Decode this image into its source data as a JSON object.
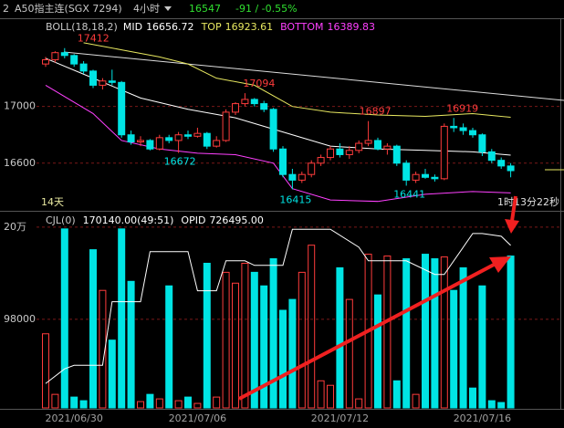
{
  "header": {
    "id": "2",
    "symbol": "A50指主连(SGX 7294)",
    "period": "4小时",
    "last": 16547,
    "change": "-91 / -0.55%"
  },
  "chart_data": {
    "type": "candlestick",
    "indicator": "BOLL(18,18,2)",
    "categories": [
      null,
      null,
      null,
      "2021/06/30",
      null,
      null,
      null,
      null,
      null,
      null,
      null,
      null,
      null,
      null,
      null,
      null,
      "2021/07/06",
      null,
      null,
      null,
      null,
      null,
      null,
      null,
      null,
      null,
      null,
      null,
      null,
      null,
      null,
      "2021/07/12",
      null,
      null,
      null,
      null,
      null,
      null,
      null,
      null,
      null,
      null,
      null,
      null,
      null,
      null,
      "2021/07/16",
      null,
      null,
      null
    ],
    "open": [
      17300,
      17330,
      17380,
      17360,
      17300,
      17250,
      17150,
      17180,
      17170,
      16800,
      16750,
      16760,
      16700,
      16780,
      16760,
      16800,
      16790,
      16810,
      16720,
      16760,
      16960,
      17020,
      17050,
      17020,
      16980,
      16700,
      16520,
      16480,
      16520,
      16600,
      16640,
      16700,
      16660,
      16690,
      16740,
      16760,
      16700,
      16720,
      16600,
      16480,
      16520,
      16500,
      16490,
      16860,
      16850,
      16830,
      16800,
      16680,
      16620,
      16580
    ],
    "high": [
      17350,
      17390,
      17412,
      17370,
      17320,
      17260,
      17200,
      17260,
      17180,
      16830,
      16790,
      16770,
      16800,
      16800,
      16820,
      16830,
      16850,
      16820,
      16790,
      16980,
      17030,
      17094,
      17060,
      17040,
      16990,
      16720,
      16560,
      16540,
      16620,
      16660,
      16720,
      16740,
      16720,
      16760,
      16897,
      16780,
      16740,
      16730,
      16620,
      16540,
      16560,
      16520,
      16880,
      16919,
      16880,
      16850,
      16810,
      16700,
      16640,
      16600
    ],
    "low": [
      17280,
      17310,
      17340,
      17280,
      17230,
      17130,
      17120,
      17150,
      16780,
      16730,
      16720,
      16690,
      16690,
      16740,
      16672,
      16770,
      16780,
      16700,
      16710,
      16750,
      16940,
      17000,
      17000,
      16960,
      16680,
      16500,
      16415,
      16460,
      16500,
      16580,
      16620,
      16640,
      16630,
      16670,
      16720,
      16690,
      16660,
      16580,
      16441,
      16460,
      16490,
      16470,
      16480,
      16820,
      16800,
      16780,
      16650,
      16600,
      16560,
      16500
    ],
    "close": [
      17330,
      17380,
      17360,
      17300,
      17250,
      17150,
      17180,
      17170,
      16800,
      16750,
      16760,
      16700,
      16780,
      16760,
      16800,
      16790,
      16810,
      16720,
      16760,
      16960,
      17020,
      17050,
      17020,
      16980,
      16700,
      16520,
      16480,
      16520,
      16600,
      16640,
      16700,
      16660,
      16690,
      16740,
      16760,
      16700,
      16720,
      16600,
      16480,
      16520,
      16500,
      16490,
      16860,
      16850,
      16830,
      16800,
      16680,
      16620,
      16580,
      16547
    ],
    "up_color": "#ff3c3c",
    "down_color": "#00e4e4",
    "ylim": [
      16270,
      17610
    ],
    "yticks": [
      17000,
      16600
    ],
    "grid": true,
    "overlays": [
      {
        "name": "MID",
        "color": "#ffffff",
        "x": [
          0,
          5,
          10,
          15,
          20,
          25,
          30,
          35,
          40,
          45,
          49
        ],
        "values": [
          17340,
          17200,
          17060,
          16980,
          16920,
          16820,
          16720,
          16700,
          16690,
          16680,
          16656.72
        ]
      },
      {
        "name": "TOP",
        "color": "#e8e860",
        "x": [
          4,
          8,
          12,
          15,
          18,
          22,
          26,
          30,
          35,
          40,
          45,
          49
        ],
        "values": [
          17450,
          17400,
          17350,
          17300,
          17200,
          17150,
          17000,
          16960,
          16940,
          16930,
          16950,
          16923.61
        ]
      },
      {
        "name": "BOTTOM",
        "color": "#ff40ff",
        "x": [
          0,
          5,
          8,
          12,
          16,
          20,
          24,
          26,
          30,
          35,
          40,
          45,
          49
        ],
        "values": [
          17150,
          16950,
          16760,
          16700,
          16670,
          16660,
          16600,
          16420,
          16340,
          16330,
          16380,
          16400,
          16389.83
        ]
      }
    ],
    "countdown_left": "14天",
    "countdown_right": "1时13分22秒",
    "volume": {
      "name": "CJL(0)",
      "readout": "170140.00(49:51)",
      "values": [
        82000,
        15000,
        198000,
        12000,
        8000,
        175000,
        130000,
        75000,
        198000,
        140000,
        7000,
        15000,
        10000,
        135000,
        8000,
        12000,
        5000,
        160000,
        12000,
        150000,
        138000,
        160000,
        150000,
        135000,
        165000,
        108000,
        120000,
        150000,
        180000,
        30000,
        25000,
        155000,
        120000,
        10000,
        170000,
        125000,
        168000,
        30000,
        165000,
        15000,
        170000,
        165000,
        167000,
        130000,
        155000,
        22000,
        135000,
        8000,
        6000,
        168000
      ],
      "ylim": [
        0,
        216000
      ],
      "yticks": [
        {
          "value": 200000,
          "label": "20万"
        },
        98000
      ],
      "y2lim": [
        560000,
        760000
      ],
      "series": [
        {
          "name": "OPID",
          "color": "#ffffff",
          "axis": "y2",
          "legend_value": "726495.00",
          "x": [
            0,
            2,
            3,
            6,
            7,
            10,
            11,
            15,
            16,
            18,
            19,
            21,
            22,
            25,
            26,
            29,
            30,
            33,
            34,
            37,
            38,
            41,
            42,
            45,
            46,
            48,
            49
          ],
          "values": [
            585000,
            600000,
            603700,
            603700,
            668800,
            668800,
            720000,
            720000,
            680000,
            680000,
            710700,
            710700,
            706000,
            706000,
            743000,
            743000,
            743000,
            724600,
            710700,
            710700,
            710700,
            696700,
            696700,
            738600,
            738600,
            735800,
            726495
          ]
        }
      ]
    }
  }
}
